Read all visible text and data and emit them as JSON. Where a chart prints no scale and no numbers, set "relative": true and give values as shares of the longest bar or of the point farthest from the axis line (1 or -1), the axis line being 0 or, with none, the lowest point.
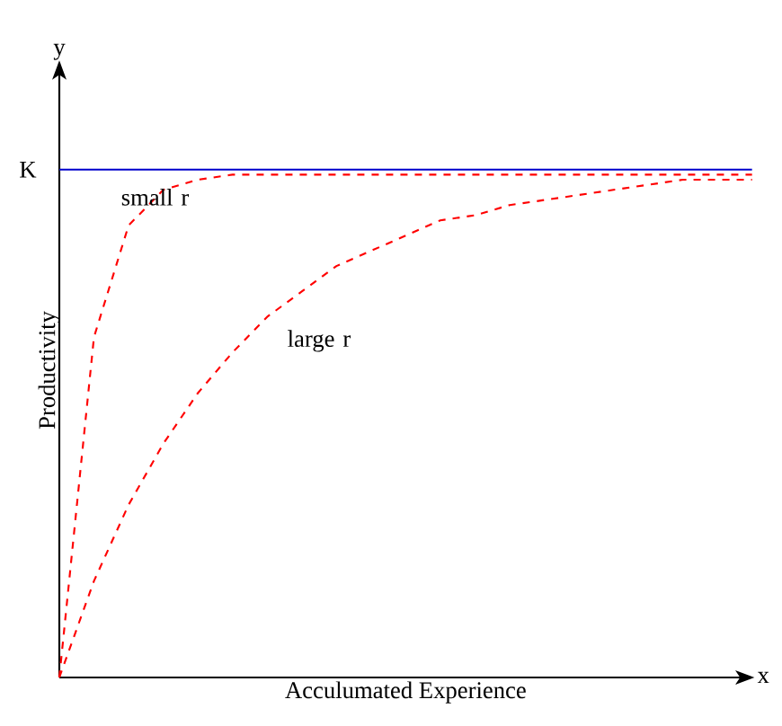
{
  "chart_data": {
    "type": "line",
    "relative": true,
    "xlabel": "Acculumated Experience",
    "ylabel": "Productivity",
    "annotations": [
      "small r",
      "large r",
      "y",
      "x"
    ],
    "categories": [
      null,
      null,
      null,
      null,
      null,
      null,
      null,
      null,
      null,
      null,
      null,
      null,
      null,
      null,
      null,
      null,
      null,
      null,
      null,
      null,
      null
    ],
    "series": [
      {
        "name": "K",
        "color": "#0000cc",
        "line_style": "solid",
        "values": [
          1,
          1,
          1,
          1,
          1,
          1,
          1,
          1,
          1,
          1,
          1,
          1,
          1,
          1,
          1,
          1,
          1,
          1,
          1,
          1,
          1
        ]
      },
      {
        "color": "#ff0000",
        "line_style": "dashed",
        "values": [
          0,
          0.67,
          0.89,
          0.96,
          0.98,
          0.99,
          0.99,
          0.99,
          0.99,
          0.99,
          0.99,
          0.99,
          0.99,
          0.99,
          0.99,
          0.99,
          0.99,
          0.99,
          0.99,
          0.99,
          0.99
        ]
      },
      {
        "color": "#ff0000",
        "line_style": "dashed",
        "values": [
          0,
          0.19,
          0.34,
          0.46,
          0.56,
          0.64,
          0.71,
          0.76,
          0.81,
          0.84,
          0.87,
          0.9,
          0.91,
          0.93,
          0.94,
          0.95,
          0.96,
          0.97,
          0.98,
          0.98,
          0.98
        ]
      }
    ],
    "legend": false
  }
}
